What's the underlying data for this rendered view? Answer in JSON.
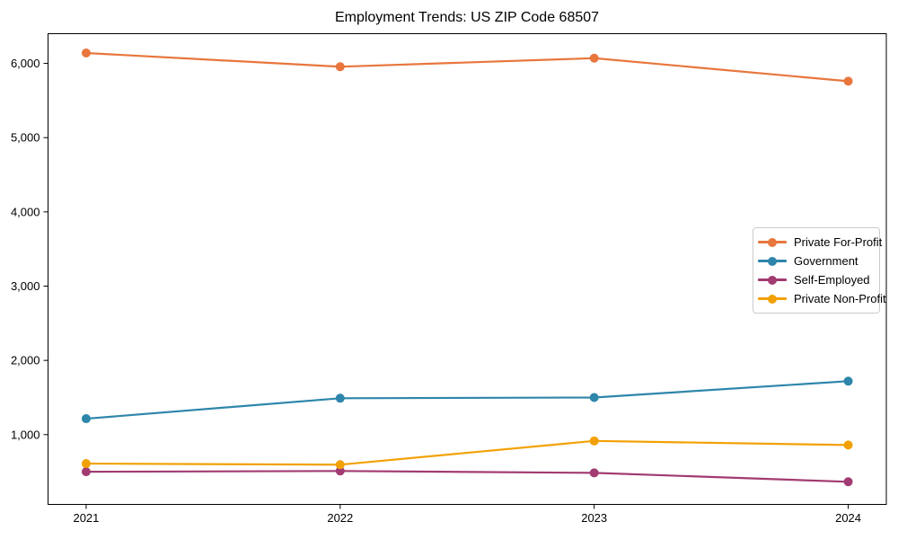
{
  "chart_data": {
    "type": "line",
    "title": "Employment Trends: US ZIP Code 68507",
    "x": [
      2021,
      2022,
      2023,
      2024
    ],
    "series": [
      {
        "name": "Private For-Profit",
        "color": "#E8763D",
        "values": [
          6140,
          5955,
          6070,
          5760
        ]
      },
      {
        "name": "Government",
        "color": "#2E86AB",
        "values": [
          1215,
          1490,
          1500,
          1720
        ]
      },
      {
        "name": "Self-Employed",
        "color": "#A23B72",
        "values": [
          500,
          510,
          485,
          365
        ]
      },
      {
        "name": "Private Non-Profit",
        "color": "#F2A104",
        "values": [
          610,
          595,
          915,
          860
        ]
      }
    ],
    "xlabel": "",
    "ylabel": "",
    "ylim": [
      60,
      6400
    ],
    "yticks": [
      1000,
      2000,
      3000,
      4000,
      5000,
      6000
    ],
    "grid": false,
    "legend_position": "center-right",
    "marker": "circle",
    "axis_color": "#000000",
    "background_color": "#ffffff"
  }
}
